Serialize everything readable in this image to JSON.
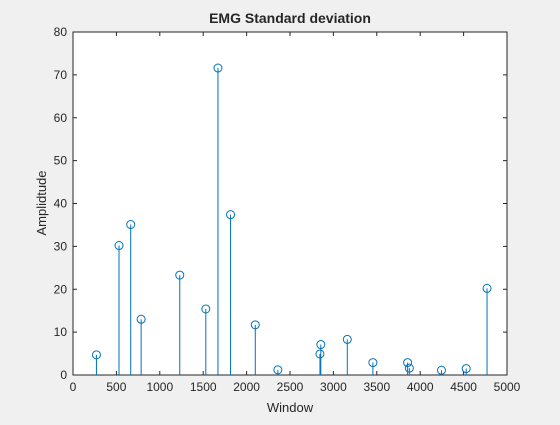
{
  "chart_data": {
    "type": "stem",
    "title": "EMG Standard deviation",
    "xlabel": "Window",
    "ylabel": "Amplidtude",
    "xlim": [
      0,
      5000
    ],
    "ylim": [
      0,
      80
    ],
    "xticks": [
      0,
      500,
      1000,
      1500,
      2000,
      2500,
      3000,
      3500,
      4000,
      4500,
      5000
    ],
    "yticks": [
      0,
      10,
      20,
      30,
      40,
      50,
      60,
      70,
      80
    ],
    "grid": false,
    "series": [
      {
        "color": "#0072bd",
        "marker": "circle-open",
        "points": [
          {
            "x": 270,
            "y": 4.7
          },
          {
            "x": 530,
            "y": 30.2
          },
          {
            "x": 665,
            "y": 35.1
          },
          {
            "x": 785,
            "y": 13.0
          },
          {
            "x": 1230,
            "y": 23.3
          },
          {
            "x": 1530,
            "y": 15.4
          },
          {
            "x": 1670,
            "y": 71.6
          },
          {
            "x": 1815,
            "y": 37.4
          },
          {
            "x": 2100,
            "y": 11.7
          },
          {
            "x": 2360,
            "y": 1.2
          },
          {
            "x": 2845,
            "y": 4.9
          },
          {
            "x": 2855,
            "y": 7.1
          },
          {
            "x": 3160,
            "y": 8.3
          },
          {
            "x": 3455,
            "y": 2.9
          },
          {
            "x": 3855,
            "y": 2.9
          },
          {
            "x": 3875,
            "y": 1.6
          },
          {
            "x": 4245,
            "y": 1.1
          },
          {
            "x": 4530,
            "y": 1.5
          },
          {
            "x": 4770,
            "y": 20.2
          }
        ]
      }
    ]
  }
}
